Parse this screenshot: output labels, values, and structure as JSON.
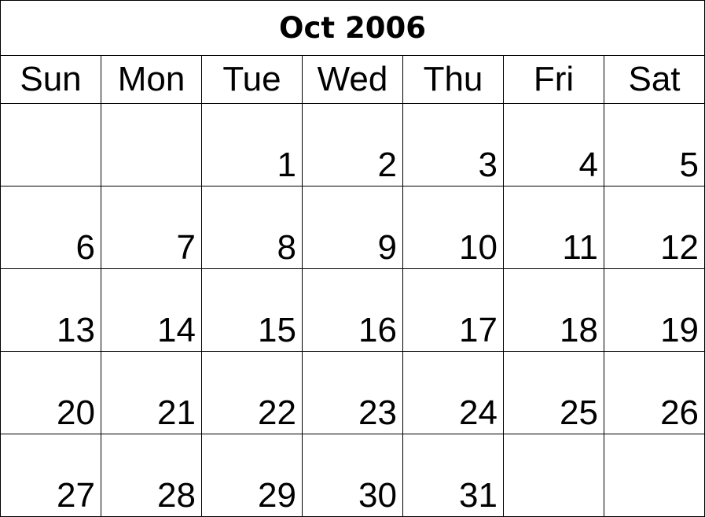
{
  "title": "Oct 2006",
  "weekdays": [
    "Sun",
    "Mon",
    "Tue",
    "Wed",
    "Thu",
    "Fri",
    "Sat"
  ],
  "weeks": [
    [
      "",
      "",
      "1",
      "2",
      "3",
      "4",
      "5"
    ],
    [
      "6",
      "7",
      "8",
      "9",
      "10",
      "11",
      "12"
    ],
    [
      "13",
      "14",
      "15",
      "16",
      "17",
      "18",
      "19"
    ],
    [
      "20",
      "21",
      "22",
      "23",
      "24",
      "25",
      "26"
    ],
    [
      "27",
      "28",
      "29",
      "30",
      "31",
      "",
      ""
    ]
  ]
}
